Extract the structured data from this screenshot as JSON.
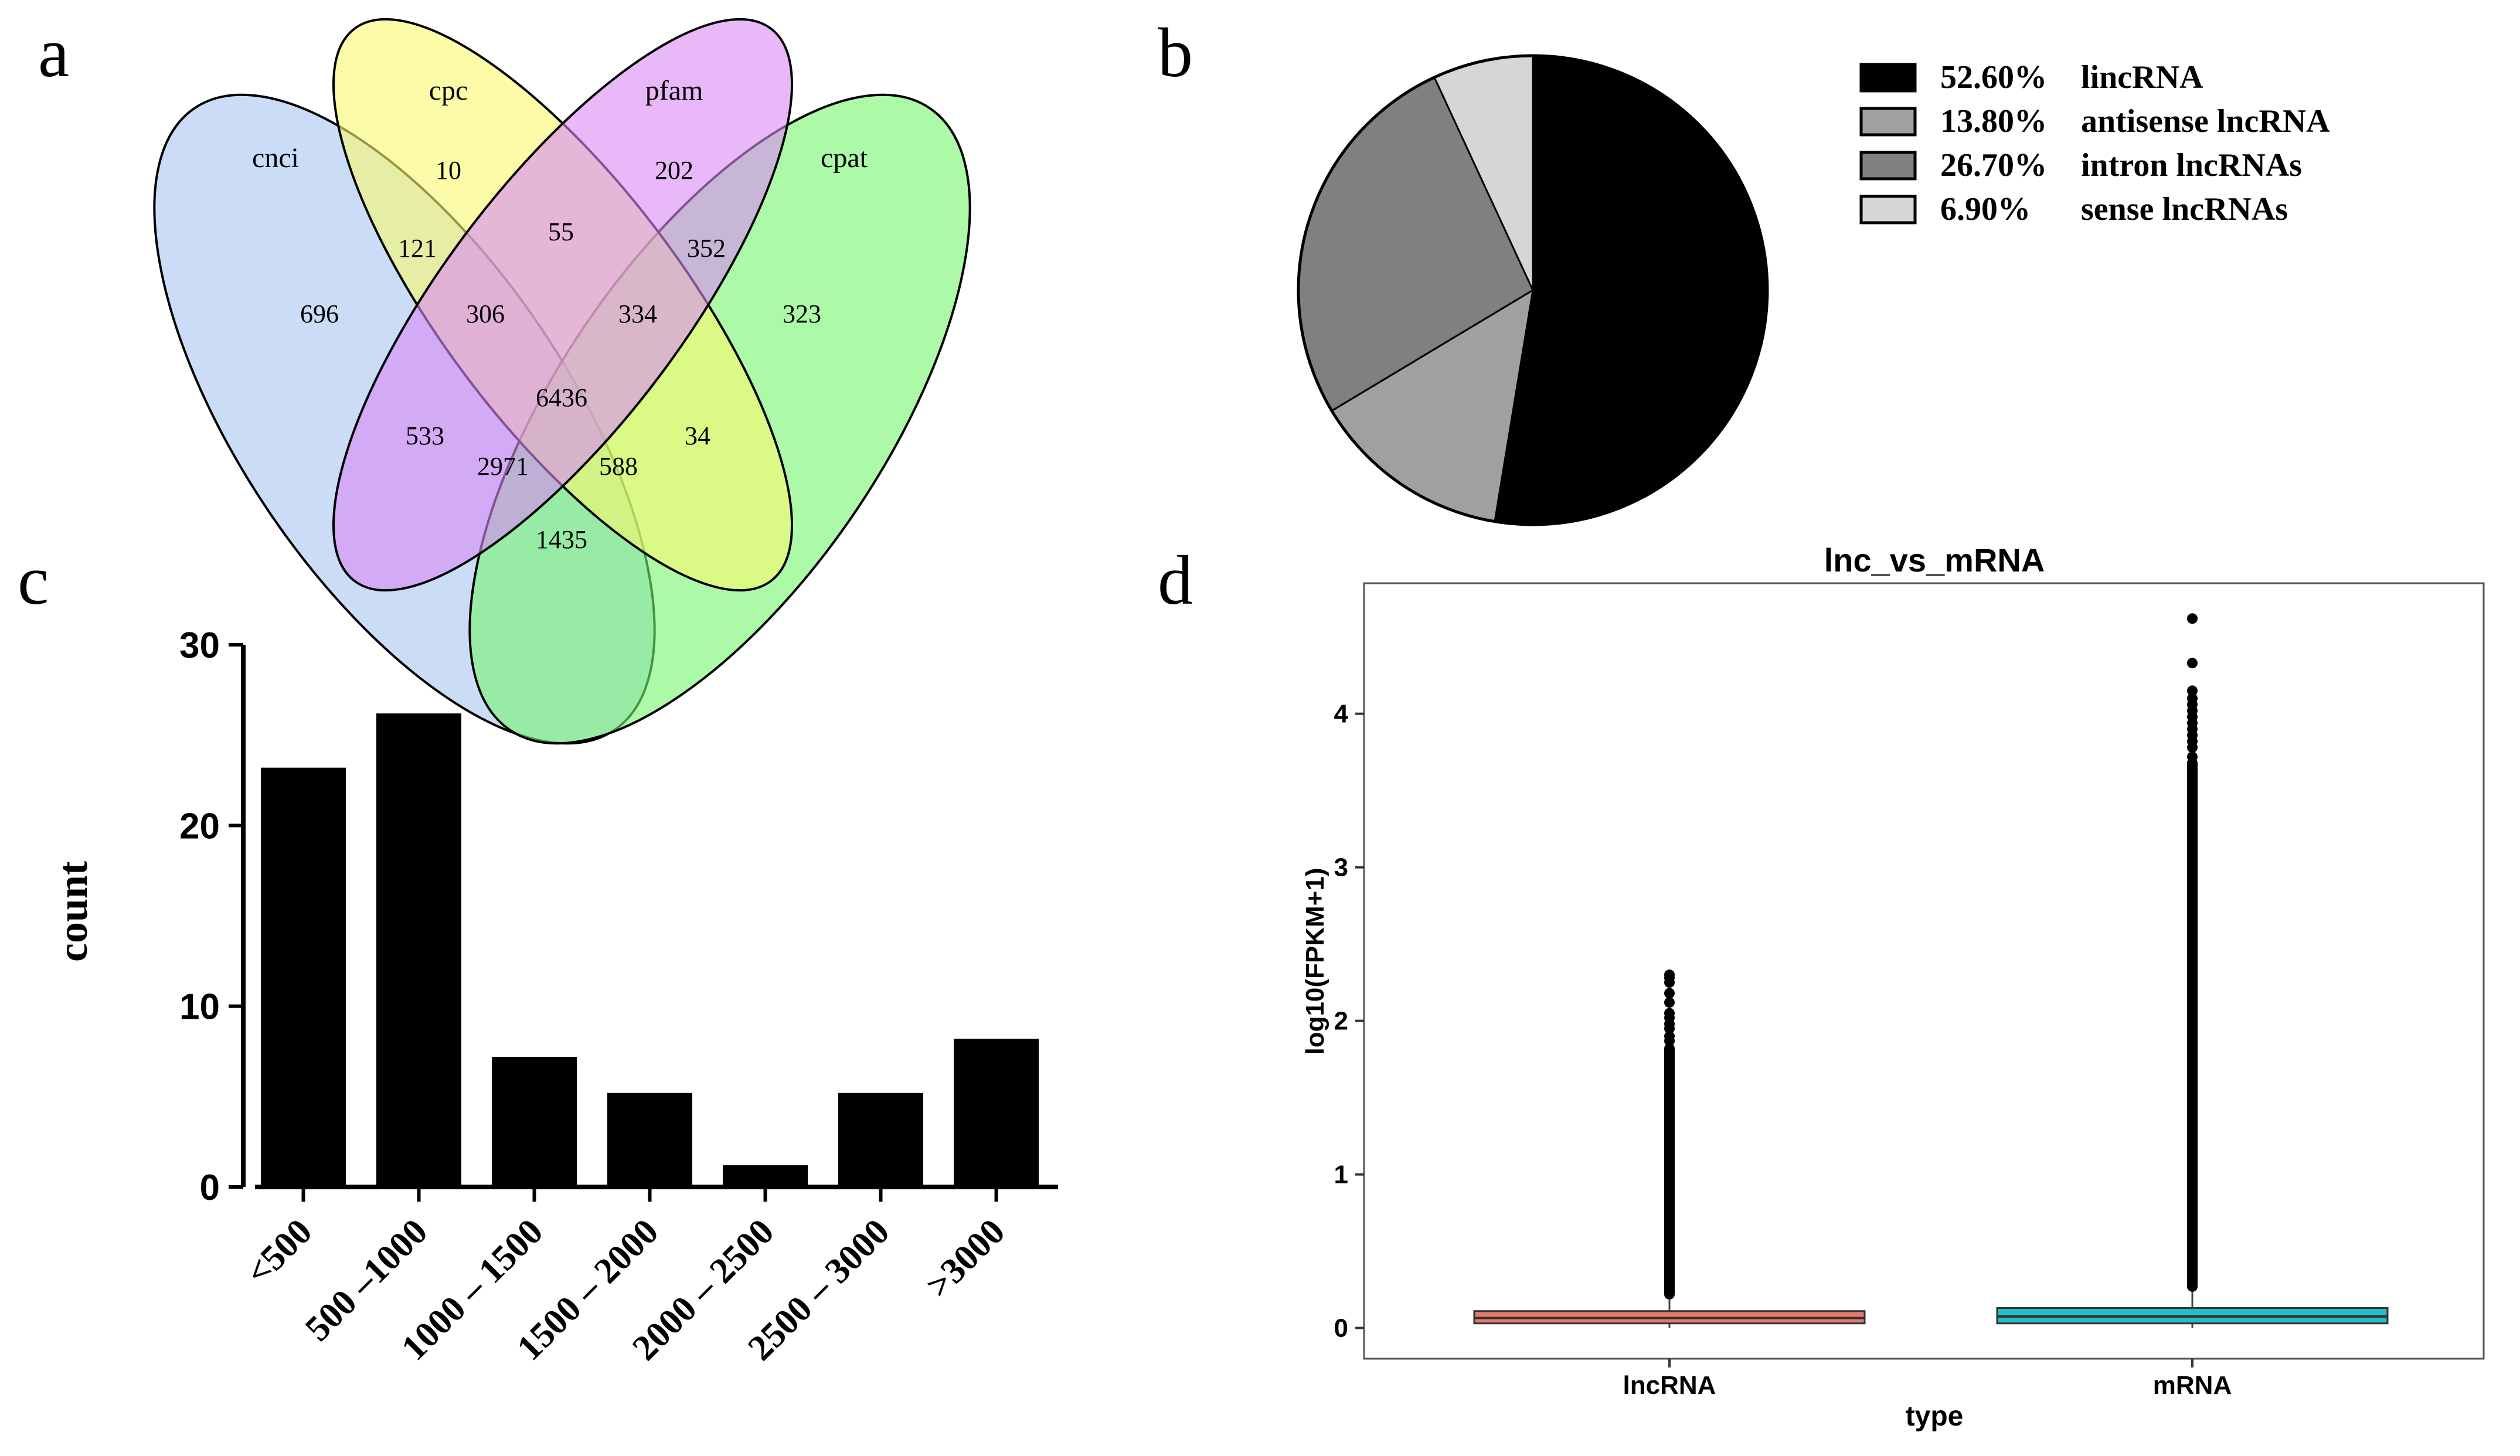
{
  "colors": {
    "cnci": "#a9c4f2",
    "cpc": "#f8f86e",
    "pfam": "#d889f5",
    "cpat": "#74f56e",
    "pie": [
      "#000000",
      "#a0a0a0",
      "#808080",
      "#d6d6d6"
    ],
    "bar": "#000000",
    "box_lnc": "#e37a6f",
    "box_mrna": "#20c0c6"
  },
  "panels": {
    "a": {
      "label": "a"
    },
    "b": {
      "label": "b"
    },
    "c": {
      "label": "c"
    },
    "d": {
      "label": "d"
    }
  },
  "chart_data": [
    {
      "type": "venn",
      "panel": "a",
      "sets": [
        "cnci",
        "cpc",
        "pfam",
        "cpat"
      ],
      "regions": [
        {
          "sets": [
            "cnci"
          ],
          "value": "696"
        },
        {
          "sets": [
            "cpc"
          ],
          "value": "10"
        },
        {
          "sets": [
            "pfam"
          ],
          "value": "202"
        },
        {
          "sets": [
            "cpat"
          ],
          "value": "323"
        },
        {
          "sets": [
            "cnci",
            "cpc"
          ],
          "value": "121"
        },
        {
          "sets": [
            "cpc",
            "pfam"
          ],
          "value": "55"
        },
        {
          "sets": [
            "pfam",
            "cpat"
          ],
          "value": "352"
        },
        {
          "sets": [
            "cnci",
            "cpc",
            "pfam"
          ],
          "value": "306"
        },
        {
          "sets": [
            "cpc",
            "pfam",
            "cpat"
          ],
          "value": "334"
        },
        {
          "sets": [
            "cnci",
            "cpc",
            "pfam",
            "cpat"
          ],
          "value": "6436"
        },
        {
          "sets": [
            "cnci",
            "pfam"
          ],
          "value": "533"
        },
        {
          "sets": [
            "cpc",
            "cpat"
          ],
          "value": "34"
        },
        {
          "sets": [
            "cnci",
            "pfam",
            "cpat"
          ],
          "value": "2971"
        },
        {
          "sets": [
            "cnci",
            "cpc",
            "cpat"
          ],
          "value": "588"
        },
        {
          "sets": [
            "cnci",
            "cpat"
          ],
          "value": "1435"
        }
      ]
    },
    {
      "type": "pie",
      "panel": "b",
      "slices": [
        {
          "label": "lincRNA",
          "percent": 52.6,
          "percent_text": "52.60%"
        },
        {
          "label": "antisense lncRNA",
          "percent": 13.8,
          "percent_text": "13.80%"
        },
        {
          "label": "intron lncRNAs",
          "percent": 26.7,
          "percent_text": "26.70%"
        },
        {
          "label": "sense lncRNAs",
          "percent": 6.9,
          "percent_text": "6.90%"
        }
      ],
      "legend_position": "right"
    },
    {
      "type": "bar",
      "panel": "c",
      "categories": [
        "<500",
        "500 –1000",
        "1000 – 1500",
        "1500 – 2000",
        "2000 – 2500",
        "2500 – 3000",
        ">3000"
      ],
      "values": [
        23.2,
        26.2,
        7.2,
        5.2,
        1.2,
        5.2,
        8.2
      ],
      "ylabel": "count",
      "xlabel": "",
      "ylim": [
        0,
        30
      ],
      "yticks": [
        0,
        10,
        20,
        30
      ]
    },
    {
      "type": "box",
      "panel": "d",
      "title": "lnc_vs_mRNA",
      "xlabel": "type",
      "ylabel": "log10(FPKM+1)",
      "ylim": [
        -0.2,
        4.85
      ],
      "yticks": [
        0,
        1,
        2,
        3,
        4
      ],
      "categories": [
        "lncRNA",
        "mRNA"
      ],
      "boxes": [
        {
          "name": "lncRNA",
          "q1": 0.03,
          "median": 0.065,
          "q3": 0.11,
          "whisker_low": 0.0,
          "whisker_high": 0.22,
          "outlier_range": [
            0.22,
            1.82
          ],
          "outliers": [
            0.9,
            1.0,
            1.13,
            1.18,
            1.26,
            1.32,
            1.4,
            1.55,
            1.6,
            1.66,
            1.72,
            1.8,
            1.87,
            1.9,
            1.95,
            1.98,
            2.02,
            2.05,
            2.12,
            2.18,
            2.25,
            2.28,
            2.3
          ]
        },
        {
          "name": "mRNA",
          "q1": 0.03,
          "median": 0.075,
          "q3": 0.13,
          "whisker_low": 0.0,
          "whisker_high": 0.27,
          "outlier_range": [
            0.27,
            3.68
          ],
          "outliers": [
            3.72,
            3.78,
            3.82,
            3.86,
            3.9,
            3.94,
            3.98,
            4.02,
            4.06,
            4.1,
            4.15,
            4.33,
            4.62
          ]
        }
      ]
    }
  ]
}
